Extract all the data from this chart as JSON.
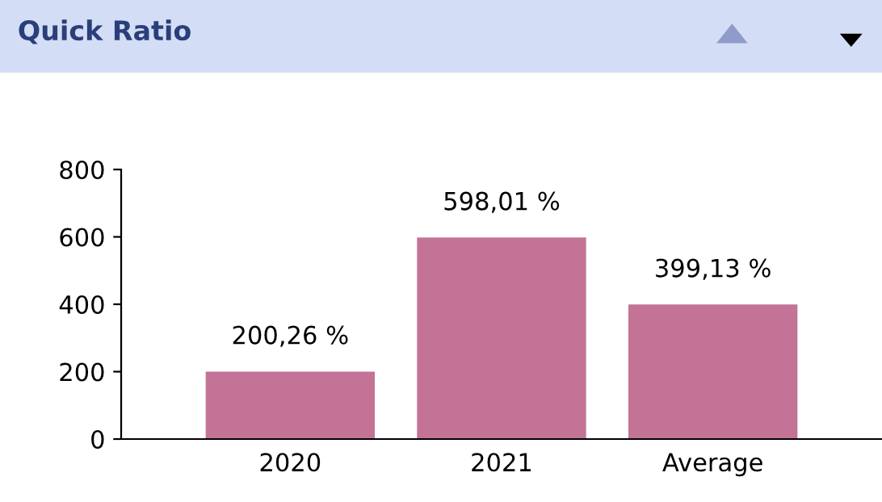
{
  "chart_data": {
    "type": "bar",
    "title": "Quick Ratio",
    "categories": [
      "2020",
      "2021",
      "Average"
    ],
    "values": [
      200.26,
      598.01,
      399.13
    ],
    "value_labels": [
      "200,26 %",
      "598,01 %",
      "399,13 %"
    ],
    "color": "#c27396",
    "ylim": [
      0,
      800
    ],
    "yticks": [
      0,
      200,
      400,
      600,
      800
    ],
    "grid": false,
    "legend": false
  }
}
